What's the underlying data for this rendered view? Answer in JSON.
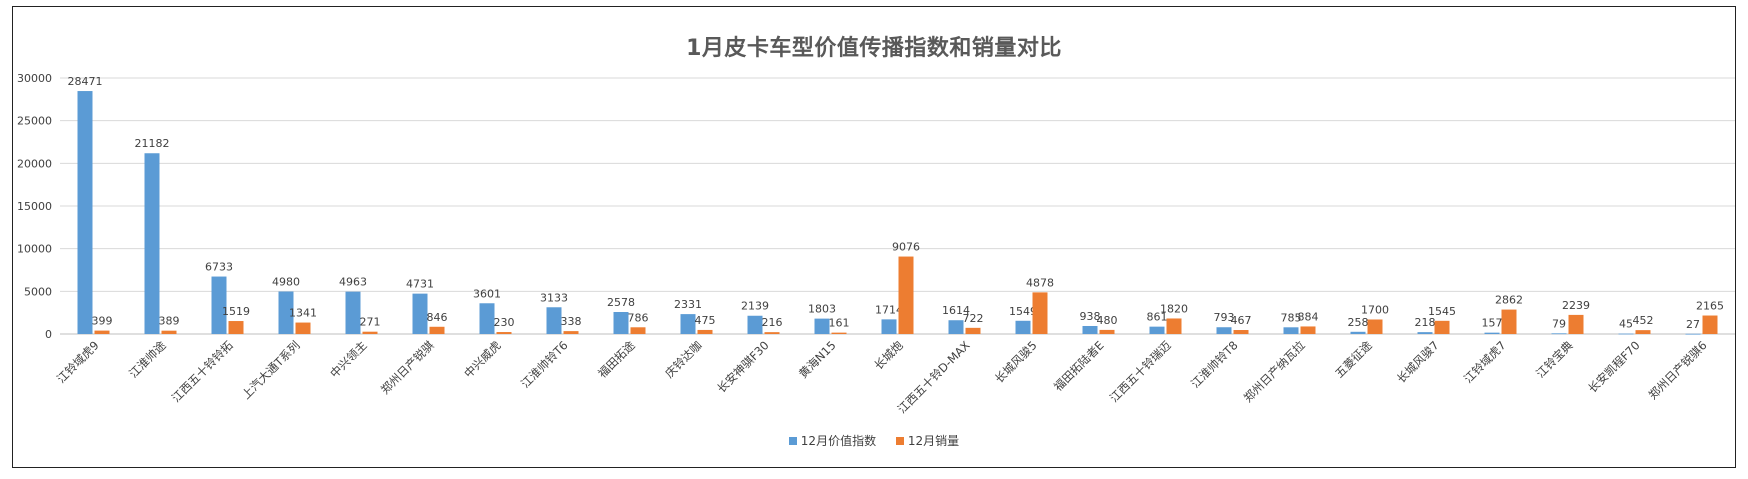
{
  "chart_data": {
    "type": "bar",
    "title": "1月皮卡车型价值传播指数和销量对比",
    "ylim": [
      0,
      30000
    ],
    "yticks": [
      0,
      5000,
      10000,
      15000,
      20000,
      25000,
      30000
    ],
    "grid": true,
    "legend_position": "bottom",
    "categories": [
      "江铃域虎9",
      "江淮帅途",
      "江西五十铃铃拓",
      "上汽大通T系列",
      "中兴领主",
      "郑州日产锐骐",
      "中兴威虎",
      "江淮帅铃T6",
      "福田拓途",
      "庆铃达咖",
      "长安神骐F30",
      "黄海N15",
      "长城炮",
      "江西五十铃D-MAX",
      "长城风骏5",
      "福田拓陆者E",
      "江西五十铃瑞迈",
      "江淮帅铃T8",
      "郑州日产纳瓦拉",
      "五菱征途",
      "长城风骏7",
      "江铃域虎7",
      "江铃宝典",
      "长安凯程F70",
      "郑州日产锐骐6"
    ],
    "series": [
      {
        "name": "12月价值指数",
        "color": "#5B9BD5",
        "values": [
          28471,
          21182,
          6733,
          4980,
          4963,
          4731,
          3601,
          3133,
          2578,
          2331,
          2139,
          1803,
          1714,
          1614,
          1549,
          938,
          861,
          793,
          785,
          258,
          218,
          157,
          79,
          45,
          27
        ]
      },
      {
        "name": "12月销量",
        "color": "#ED7D31",
        "values": [
          399,
          389,
          1519,
          1341,
          271,
          846,
          230,
          338,
          786,
          475,
          216,
          161,
          9076,
          722,
          4878,
          480,
          1820,
          467,
          884,
          1700,
          1545,
          2862,
          2239,
          452,
          2165
        ]
      }
    ]
  }
}
